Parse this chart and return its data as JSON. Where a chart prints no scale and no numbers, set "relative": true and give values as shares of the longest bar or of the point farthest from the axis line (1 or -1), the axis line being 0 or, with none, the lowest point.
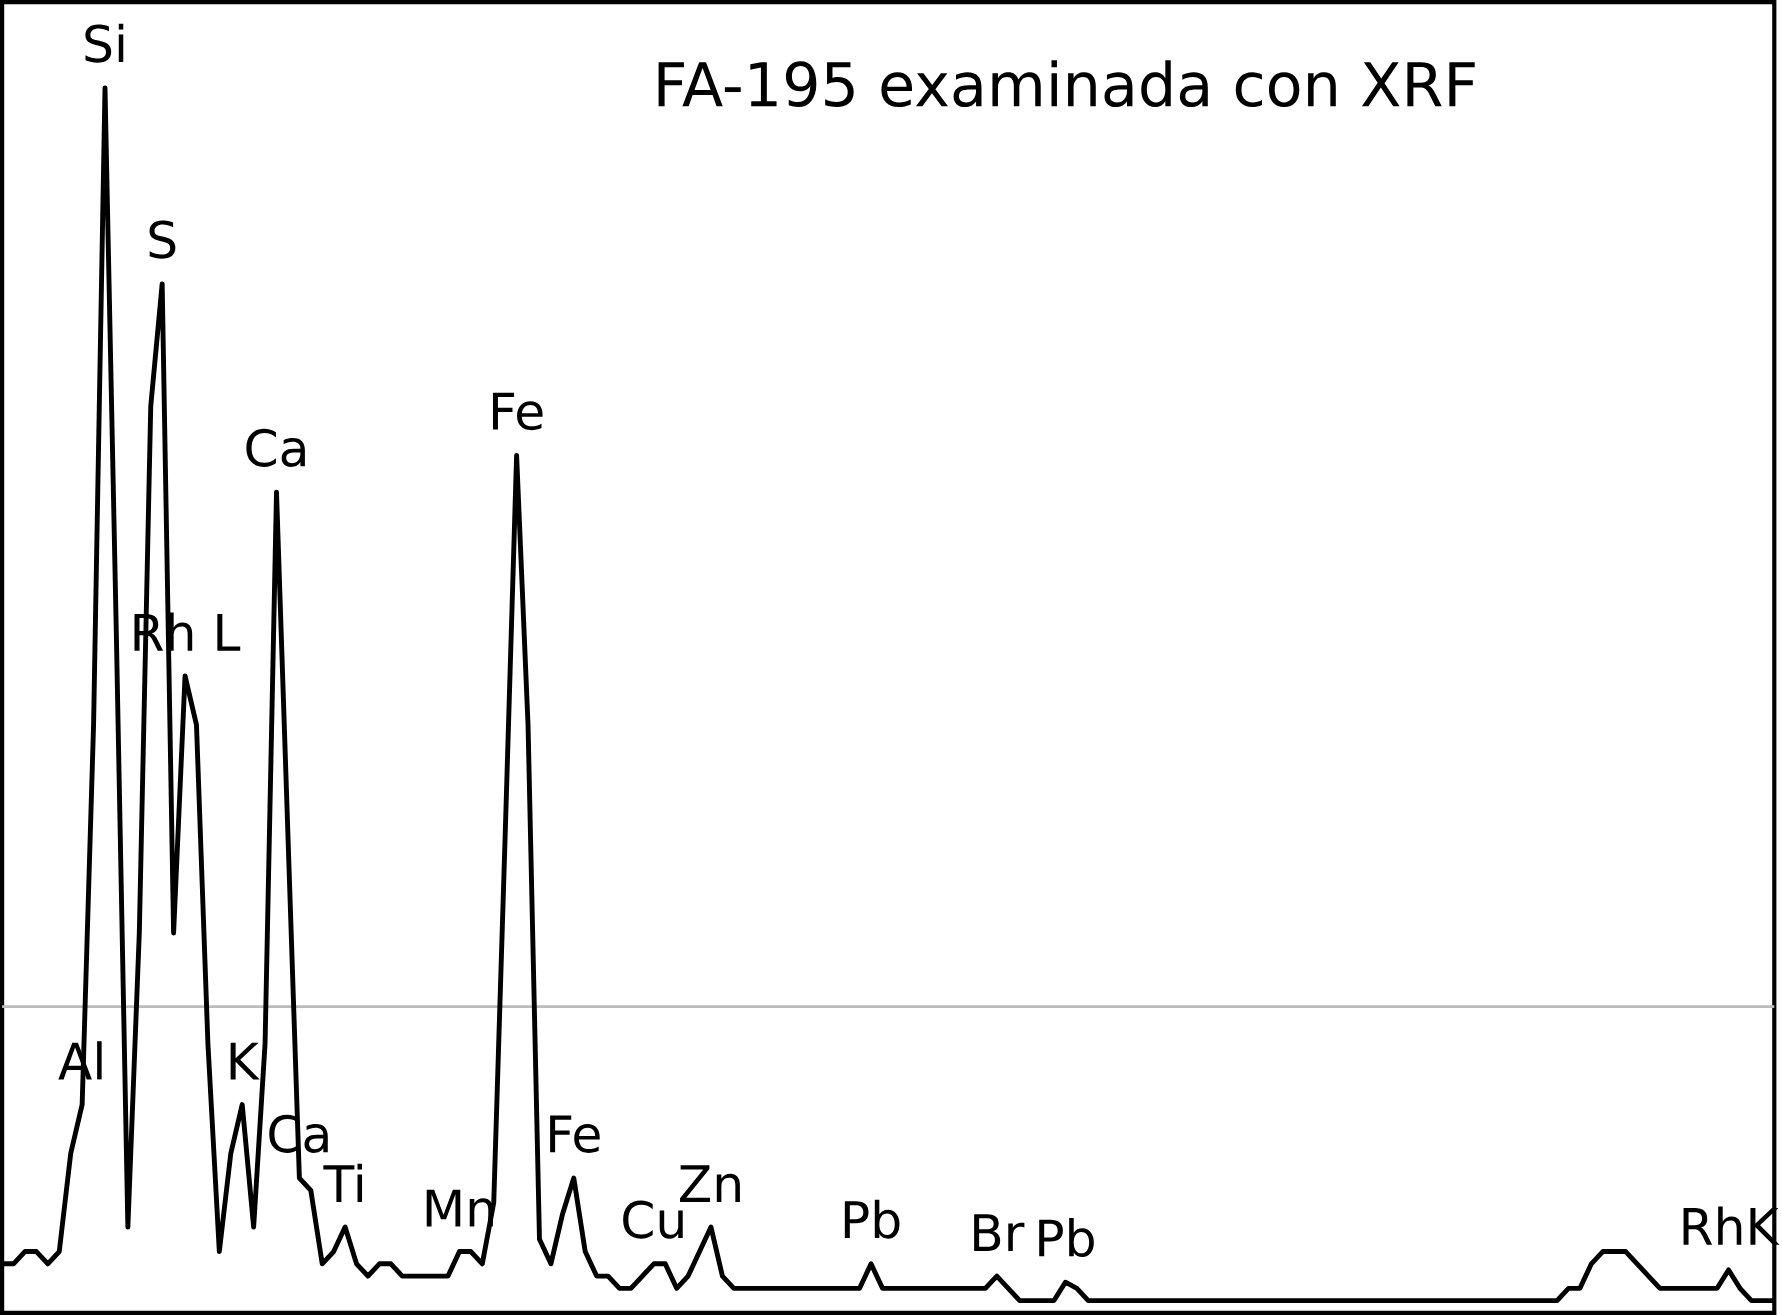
{
  "chart_data": {
    "type": "line",
    "relative": true,
    "title": "FA-195 examinada con XRF",
    "categories": [
      null,
      null,
      null,
      null,
      null,
      null,
      null,
      null,
      null,
      null,
      null,
      null,
      null,
      null,
      null,
      null,
      null,
      null,
      null,
      null,
      null,
      null,
      null,
      null,
      null,
      null,
      null,
      null,
      null,
      null,
      null,
      null,
      null,
      null,
      null,
      null,
      null,
      null,
      null,
      null,
      null,
      null,
      null,
      null,
      null,
      null,
      null,
      null,
      null,
      null,
      null,
      null,
      null,
      null,
      null,
      null,
      null,
      null,
      null,
      null,
      null,
      null,
      null,
      null,
      null,
      null,
      null,
      null,
      null,
      null,
      null,
      null,
      null,
      null,
      null,
      null,
      null,
      null,
      null,
      null,
      null,
      null,
      null,
      null,
      null,
      null,
      null,
      null,
      null,
      null,
      null,
      null,
      null,
      null,
      null,
      null,
      null,
      null,
      null,
      null,
      null,
      null,
      null,
      null,
      null,
      null,
      null,
      null,
      null,
      null,
      null,
      null,
      null,
      null,
      null,
      null,
      null,
      null,
      null,
      null,
      null,
      null,
      null,
      null,
      null,
      null,
      null,
      null,
      null,
      null,
      null,
      null,
      null,
      null,
      null,
      null,
      null,
      null,
      null,
      null,
      null,
      null,
      null,
      null,
      null,
      null,
      null,
      null,
      null,
      null,
      null,
      null,
      null,
      null,
      null,
      null
    ],
    "series": [
      {
        "color": "#000000",
        "values": [
          0.04,
          0.04,
          0.05,
          0.05,
          0.04,
          0.05,
          0.13,
          0.17,
          0.48,
          1.0,
          0.55,
          0.07,
          0.31,
          0.74,
          0.84,
          0.31,
          0.52,
          0.48,
          0.22,
          0.05,
          0.13,
          0.17,
          0.07,
          0.22,
          0.67,
          0.39,
          0.11,
          0.1,
          0.04,
          0.05,
          0.07,
          0.04,
          0.03,
          0.04,
          0.04,
          0.03,
          0.03,
          0.03,
          0.03,
          0.03,
          0.05,
          0.05,
          0.04,
          0.09,
          0.39,
          0.7,
          0.48,
          0.06,
          0.04,
          0.08,
          0.11,
          0.05,
          0.03,
          0.03,
          0.02,
          0.02,
          0.03,
          0.04,
          0.04,
          0.02,
          0.03,
          0.05,
          0.07,
          0.03,
          0.02,
          0.02,
          0.02,
          0.02,
          0.02,
          0.02,
          0.02,
          0.02,
          0.02,
          0.02,
          0.02,
          0.02,
          0.04,
          0.02,
          0.02,
          0.02,
          0.02,
          0.02,
          0.02,
          0.02,
          0.02,
          0.02,
          0.02,
          0.03,
          0.02,
          0.01,
          0.01,
          0.01,
          0.01,
          0.025,
          0.02,
          0.01,
          0.01,
          0.01,
          0.01,
          0.01,
          0.01,
          0.01,
          0.01,
          0.01,
          0.01,
          0.01,
          0.01,
          0.01,
          0.01,
          0.01,
          0.01,
          0.01,
          0.01,
          0.01,
          0.01,
          0.01,
          0.01,
          0.01,
          0.01,
          0.01,
          0.01,
          0.01,
          0.01,
          0.01,
          0.01,
          0.01,
          0.01,
          0.01,
          0.01,
          0.01,
          0.01,
          0.01,
          0.01,
          0.01,
          0.01,
          0.01,
          0.01,
          0.02,
          0.02,
          0.04,
          0.05,
          0.05,
          0.05,
          0.04,
          0.03,
          0.02,
          0.02,
          0.02,
          0.02,
          0.02,
          0.02,
          0.035,
          0.02,
          0.01,
          0.01,
          0.01
        ]
      }
    ],
    "ref_lines": [
      {
        "axis": "y",
        "value": 0.25,
        "color": "#bbbbbb"
      }
    ],
    "annotations": [
      {
        "text": "Al",
        "y": 0.17
      },
      {
        "text": "Si",
        "y": 1.0
      },
      {
        "text": "S",
        "y": 0.84
      },
      {
        "text": "Rh L",
        "y": 0.52
      },
      {
        "text": "K",
        "y": 0.17
      },
      {
        "text": "Ca",
        "y": 0.67
      },
      {
        "text": "Ca",
        "y": 0.11
      },
      {
        "text": "Ti",
        "y": 0.07
      },
      {
        "text": "Mn",
        "y": 0.05
      },
      {
        "text": "Fe",
        "y": 0.7
      },
      {
        "text": "Fe",
        "y": 0.11
      },
      {
        "text": "Cu",
        "y": 0.04
      },
      {
        "text": "Zn",
        "y": 0.07
      },
      {
        "text": "Pb",
        "y": 0.04
      },
      {
        "text": "Br",
        "y": 0.03
      },
      {
        "text": "Pb",
        "y": 0.025
      },
      {
        "text": "RhK",
        "y": 0.035
      }
    ]
  }
}
